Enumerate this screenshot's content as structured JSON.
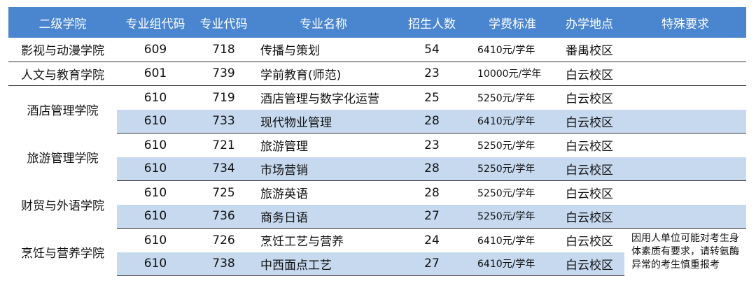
{
  "headers": [
    "二级学院",
    "专业组代码",
    "专业代码",
    "专业名称",
    "招生人数",
    "学费标准",
    "办学地点",
    "特殊要求"
  ],
  "groups": [
    {
      "college": "影视与动漫学院",
      "rows": [
        {
          "group_code": "609",
          "major_code": "718",
          "name": "传播与策划",
          "count": "54",
          "fee": "6410元/学年",
          "campus": "番禺校区"
        }
      ]
    },
    {
      "college": "人文与教育学院",
      "rows": [
        {
          "group_code": "601",
          "major_code": "739",
          "name": "学前教育(师范)",
          "count": "23",
          "fee": "10000元/学年",
          "campus": "白云校区"
        }
      ]
    },
    {
      "college": "酒店管理学院",
      "rows": [
        {
          "group_code": "610",
          "major_code": "719",
          "name": "酒店管理与数字化运营",
          "count": "25",
          "fee": "5250元/学年",
          "campus": "白云校区"
        },
        {
          "group_code": "610",
          "major_code": "733",
          "name": "现代物业管理",
          "count": "28",
          "fee": "6410元/学年",
          "campus": "白云校区"
        }
      ]
    },
    {
      "college": "旅游管理学院",
      "rows": [
        {
          "group_code": "610",
          "major_code": "721",
          "name": "旅游管理",
          "count": "23",
          "fee": "5250元/学年",
          "campus": "白云校区"
        },
        {
          "group_code": "610",
          "major_code": "734",
          "name": "市场营销",
          "count": "28",
          "fee": "5250元/学年",
          "campus": "白云校区"
        }
      ]
    },
    {
      "college": "财贸与外语学院",
      "rows": [
        {
          "group_code": "610",
          "major_code": "725",
          "name": "旅游英语",
          "count": "28",
          "fee": "5250元/学年",
          "campus": "白云校区"
        },
        {
          "group_code": "610",
          "major_code": "736",
          "name": "商务日语",
          "count": "27",
          "fee": "5250元/学年",
          "campus": "白云校区"
        }
      ]
    },
    {
      "college": "烹饪与营养学院",
      "note": "因用人单位可能对考生身体素质有要求，请转氨酶异常的考生慎重报考",
      "rows": [
        {
          "group_code": "610",
          "major_code": "726",
          "name": "烹饪工艺与营养",
          "count": "24",
          "fee": "6410元/学年",
          "campus": "白云校区"
        },
        {
          "group_code": "610",
          "major_code": "738",
          "name": "中西面点工艺",
          "count": "27",
          "fee": "6410元/学年",
          "campus": "白云校区"
        }
      ]
    }
  ],
  "colors": {
    "header_bg": "#4a86d0",
    "alt_row_bg": "#c6d9ef",
    "border": "#333333"
  }
}
